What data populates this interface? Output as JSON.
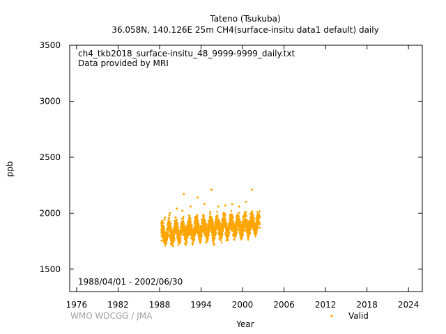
{
  "chart_data": {
    "type": "scatter",
    "title_line1": "Tateno (Tsukuba)",
    "title_line2": "36.058N, 140.126E 25m    CH4(surface-insitu data1 default) daily",
    "file_label": "ch4_tkb2018_surface-insitu_48_9999-9999_daily.txt",
    "provider_label": "Data provided by MRI",
    "period_label": "1988/04/01 - 2002/06/30",
    "xlabel": "Year",
    "ylabel": "ppb",
    "credit": "WMO WDCGG / JMA",
    "xlim": [
      1975,
      2026
    ],
    "ylim": [
      1300,
      3500
    ],
    "xticks": [
      1976,
      1982,
      1988,
      1994,
      2000,
      2006,
      2012,
      2018,
      2024
    ],
    "yticks": [
      1500,
      2000,
      2500,
      3000,
      3500
    ],
    "grid": false,
    "legend_position": "bottom-right",
    "series": [
      {
        "name": "Valid",
        "color": "#ffa500",
        "x_start": 1988.25,
        "x_end": 2002.5,
        "points": [
          [
            1988.3,
            1755
          ],
          [
            1988.4,
            1790
          ],
          [
            1988.5,
            1830
          ],
          [
            1988.6,
            1880
          ],
          [
            1988.7,
            1940
          ],
          [
            1988.8,
            1960
          ],
          [
            1988.9,
            1810
          ],
          [
            1989.0,
            1770
          ],
          [
            1989.1,
            1850
          ],
          [
            1989.3,
            1900
          ],
          [
            1989.4,
            1980
          ],
          [
            1989.5,
            2000
          ],
          [
            1989.6,
            1880
          ],
          [
            1989.8,
            1760
          ],
          [
            1989.9,
            1820
          ],
          [
            1990.1,
            1870
          ],
          [
            1990.3,
            1960
          ],
          [
            1990.5,
            2040
          ],
          [
            1990.6,
            1900
          ],
          [
            1990.8,
            1790
          ],
          [
            1991.0,
            1840
          ],
          [
            1991.2,
            1920
          ],
          [
            1991.3,
            2020
          ],
          [
            1991.5,
            2170
          ],
          [
            1991.7,
            1860
          ],
          [
            1991.9,
            1800
          ],
          [
            1992.1,
            1880
          ],
          [
            1992.3,
            1980
          ],
          [
            1992.5,
            2060
          ],
          [
            1992.7,
            1850
          ],
          [
            1992.9,
            1790
          ],
          [
            1993.1,
            1860
          ],
          [
            1993.3,
            1970
          ],
          [
            1993.5,
            2140
          ],
          [
            1993.7,
            1880
          ],
          [
            1993.9,
            1800
          ],
          [
            1994.1,
            1870
          ],
          [
            1994.3,
            1980
          ],
          [
            1994.5,
            2080
          ],
          [
            1994.7,
            1890
          ],
          [
            1994.9,
            1810
          ],
          [
            1995.1,
            1880
          ],
          [
            1995.3,
            1990
          ],
          [
            1995.5,
            2210
          ],
          [
            1995.7,
            1900
          ],
          [
            1995.9,
            1820
          ],
          [
            1996.1,
            1880
          ],
          [
            1996.3,
            1970
          ],
          [
            1996.5,
            2060
          ],
          [
            1996.7,
            1880
          ],
          [
            1996.9,
            1800
          ],
          [
            1997.1,
            1890
          ],
          [
            1997.3,
            2000
          ],
          [
            1997.5,
            2070
          ],
          [
            1997.7,
            1900
          ],
          [
            1997.9,
            1820
          ],
          [
            1998.1,
            1900
          ],
          [
            1998.3,
            1990
          ],
          [
            1998.5,
            2080
          ],
          [
            1998.7,
            1890
          ],
          [
            1998.9,
            1810
          ],
          [
            1999.1,
            1890
          ],
          [
            1999.3,
            1990
          ],
          [
            1999.5,
            2060
          ],
          [
            1999.7,
            1890
          ],
          [
            1999.9,
            1810
          ],
          [
            2000.1,
            1880
          ],
          [
            2000.3,
            1990
          ],
          [
            2000.5,
            2100
          ],
          [
            2000.7,
            1900
          ],
          [
            2000.9,
            1830
          ],
          [
            2001.1,
            1900
          ],
          [
            2001.3,
            2000
          ],
          [
            2001.4,
            2210
          ],
          [
            2001.6,
            1900
          ],
          [
            2001.8,
            1820
          ],
          [
            2002.0,
            1890
          ],
          [
            2002.2,
            1980
          ],
          [
            2002.4,
            1910
          ],
          [
            2002.5,
            1870
          ]
        ]
      }
    ]
  }
}
